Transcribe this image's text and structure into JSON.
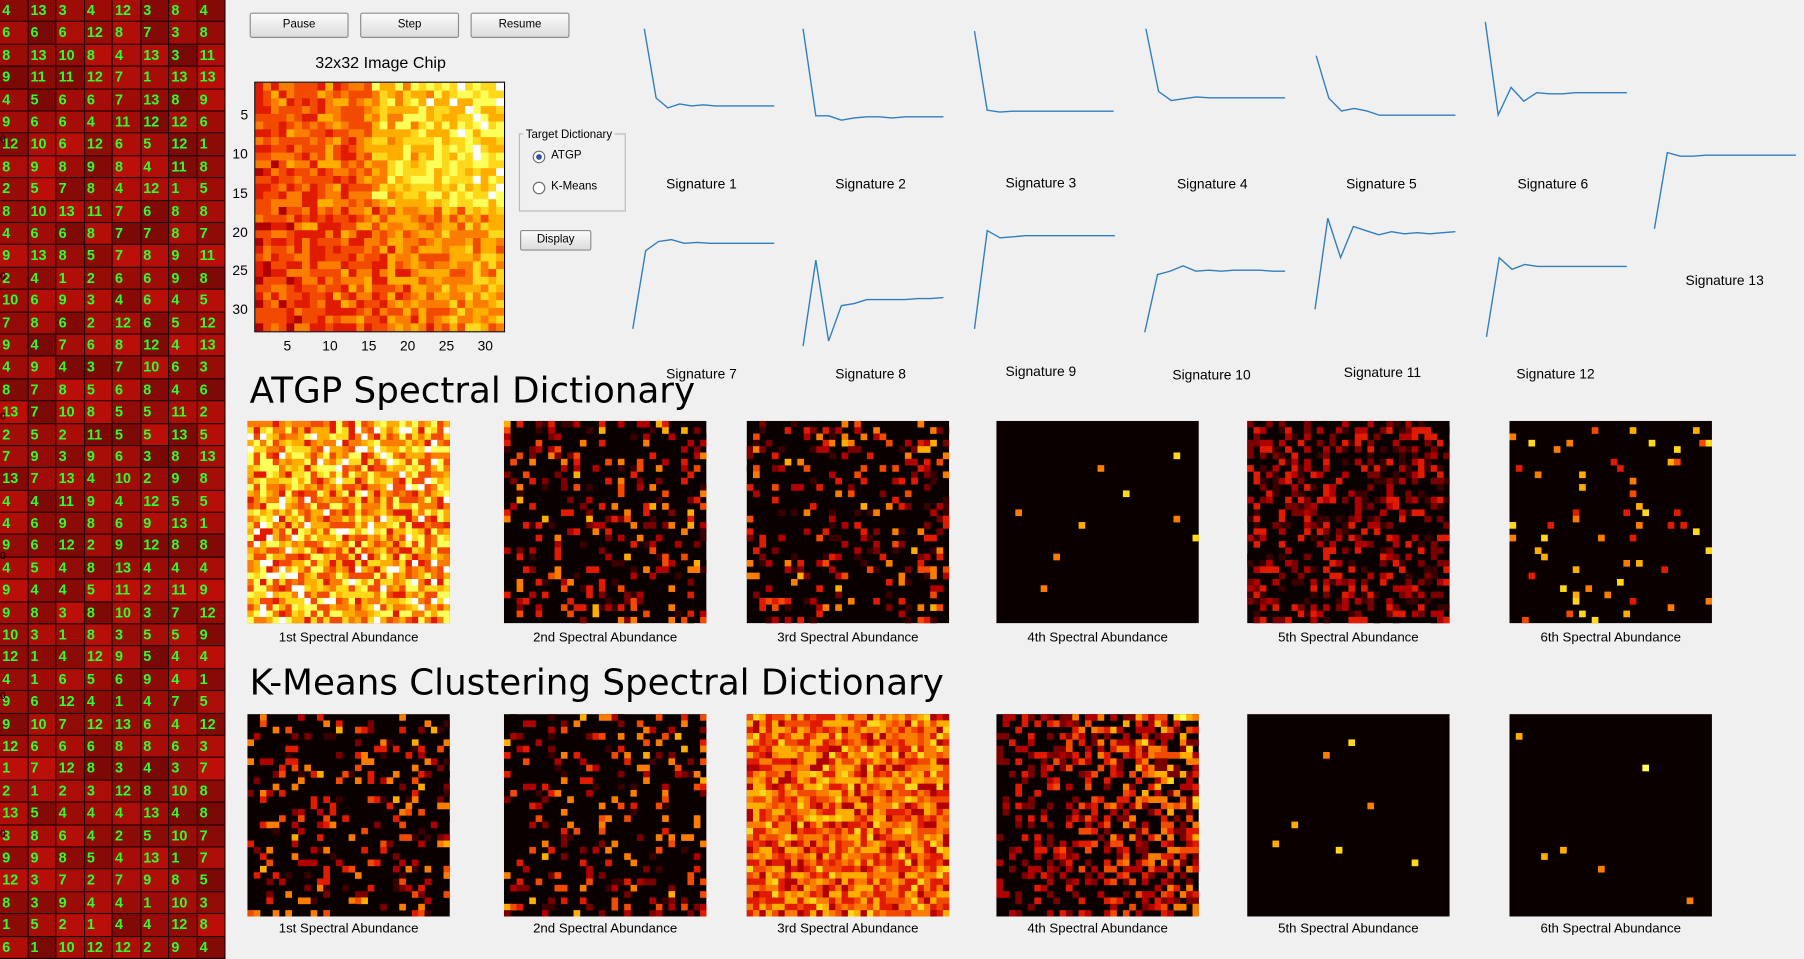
{
  "controls": {
    "pause_label": "Pause",
    "step_label": "Step",
    "resume_label": "Resume",
    "display_label": "Display",
    "target_dictionary_label": "Target Dictionary",
    "option_atgp": "ATGP",
    "option_kmeans": "K-Means",
    "selected_option": "ATGP"
  },
  "grid_panel": {
    "rows": [
      [
        "4",
        "13",
        "3",
        "4",
        "12",
        "3",
        "8",
        "4"
      ],
      [
        "6",
        "6",
        "6",
        "12",
        "8",
        "7",
        "3",
        "8"
      ],
      [
        "8",
        "13",
        "10",
        "8",
        "4",
        "13",
        "3",
        "11"
      ],
      [
        "9",
        "11",
        "11",
        "12",
        "7",
        "1",
        "13",
        "13"
      ],
      [
        "4",
        "5",
        "6",
        "6",
        "7",
        "13",
        "8",
        "9"
      ],
      [
        "9",
        "6",
        "6",
        "4",
        "11",
        "12",
        "12",
        "6"
      ],
      [
        "12",
        "10",
        "6",
        "12",
        "6",
        "5",
        "12",
        "1"
      ],
      [
        "8",
        "9",
        "8",
        "9",
        "8",
        "4",
        "11",
        "8"
      ],
      [
        "2",
        "5",
        "7",
        "8",
        "4",
        "12",
        "1",
        "5"
      ],
      [
        "8",
        "10",
        "13",
        "11",
        "7",
        "6",
        "8",
        "8"
      ],
      [
        "4",
        "6",
        "6",
        "8",
        "7",
        "7",
        "8",
        "7"
      ],
      [
        "9",
        "13",
        "8",
        "5",
        "7",
        "8",
        "9",
        "11"
      ],
      [
        "2",
        "4",
        "1",
        "2",
        "6",
        "6",
        "9",
        "8"
      ],
      [
        "10",
        "6",
        "9",
        "3",
        "4",
        "6",
        "4",
        "5"
      ],
      [
        "7",
        "8",
        "6",
        "2",
        "12",
        "6",
        "5",
        "12"
      ],
      [
        "9",
        "4",
        "7",
        "6",
        "8",
        "12",
        "4",
        "13"
      ],
      [
        "4",
        "9",
        "4",
        "3",
        "7",
        "10",
        "6",
        "3"
      ],
      [
        "8",
        "7",
        "8",
        "5",
        "6",
        "8",
        "4",
        "6"
      ],
      [
        "13",
        "7",
        "10",
        "8",
        "5",
        "5",
        "11",
        "2"
      ],
      [
        "2",
        "5",
        "2",
        "11",
        "5",
        "5",
        "13",
        "5"
      ],
      [
        "7",
        "9",
        "3",
        "9",
        "6",
        "3",
        "8",
        "13"
      ],
      [
        "13",
        "7",
        "13",
        "4",
        "10",
        "2",
        "9",
        "8"
      ],
      [
        "4",
        "4",
        "11",
        "9",
        "4",
        "12",
        "5",
        "5"
      ],
      [
        "4",
        "6",
        "9",
        "8",
        "6",
        "9",
        "13",
        "1"
      ],
      [
        "9",
        "6",
        "12",
        "2",
        "9",
        "12",
        "8",
        "8"
      ],
      [
        "4",
        "5",
        "4",
        "8",
        "13",
        "4",
        "4",
        "4"
      ],
      [
        "9",
        "4",
        "4",
        "5",
        "11",
        "2",
        "11",
        "9"
      ],
      [
        "9",
        "8",
        "3",
        "8",
        "10",
        "3",
        "7",
        "12"
      ],
      [
        "10",
        "3",
        "1",
        "8",
        "3",
        "5",
        "5",
        "9"
      ],
      [
        "12",
        "1",
        "4",
        "12",
        "9",
        "5",
        "4",
        "4"
      ],
      [
        "4",
        "1",
        "6",
        "5",
        "6",
        "9",
        "4",
        "1"
      ],
      [
        "9",
        "6",
        "12",
        "4",
        "1",
        "4",
        "7",
        "5"
      ],
      [
        "9",
        "10",
        "7",
        "12",
        "13",
        "6",
        "4",
        "12"
      ],
      [
        "12",
        "6",
        "6",
        "6",
        "8",
        "8",
        "6",
        "3"
      ],
      [
        "1",
        "7",
        "12",
        "8",
        "3",
        "4",
        "3",
        "7"
      ],
      [
        "2",
        "1",
        "2",
        "3",
        "12",
        "8",
        "10",
        "8"
      ],
      [
        "13",
        "5",
        "4",
        "4",
        "4",
        "13",
        "4",
        "8"
      ],
      [
        "3",
        "8",
        "6",
        "4",
        "2",
        "5",
        "10",
        "7"
      ],
      [
        "9",
        "9",
        "8",
        "5",
        "4",
        "13",
        "1",
        "7"
      ],
      [
        "12",
        "3",
        "7",
        "2",
        "7",
        "9",
        "8",
        "5"
      ],
      [
        "8",
        "3",
        "9",
        "4",
        "4",
        "1",
        "10",
        "3"
      ],
      [
        "1",
        "5",
        "2",
        "1",
        "4",
        "4",
        "12",
        "8"
      ],
      [
        "6",
        "1",
        "10",
        "12",
        "12",
        "2",
        "9",
        "4"
      ]
    ]
  },
  "chip": {
    "title": "32x32 Image Chip",
    "ticks_x": [
      "5",
      "10",
      "15",
      "20",
      "25",
      "30"
    ],
    "ticks_y": [
      "5",
      "10",
      "15",
      "20",
      "25",
      "30"
    ]
  },
  "signatures": [
    {
      "label": "Signature 1",
      "values": [
        1.0,
        0.3,
        0.2,
        0.24,
        0.22,
        0.23,
        0.22,
        0.22,
        0.22,
        0.22,
        0.22,
        0.22
      ]
    },
    {
      "label": "Signature 2",
      "values": [
        1.0,
        0.22,
        0.22,
        0.18,
        0.2,
        0.21,
        0.21,
        0.2,
        0.21,
        0.21,
        0.21,
        0.21
      ]
    },
    {
      "label": "Signature 3",
      "values": [
        1.0,
        0.2,
        0.18,
        0.19,
        0.19,
        0.19,
        0.19,
        0.19,
        0.19,
        0.19,
        0.19,
        0.19
      ]
    },
    {
      "label": "Signature 4",
      "values": [
        1.0,
        0.3,
        0.2,
        0.22,
        0.24,
        0.23,
        0.23,
        0.23,
        0.23,
        0.23,
        0.23,
        0.23
      ]
    },
    {
      "label": "Signature 5",
      "values": [
        0.9,
        0.4,
        0.25,
        0.28,
        0.25,
        0.2,
        0.2,
        0.2,
        0.2,
        0.2,
        0.2,
        0.2
      ]
    },
    {
      "label": "Signature 6",
      "values": [
        1.0,
        0.12,
        0.38,
        0.25,
        0.33,
        0.32,
        0.32,
        0.33,
        0.33,
        0.33,
        0.33,
        0.33
      ]
    },
    {
      "label": "Signature 7",
      "values": [
        0.0,
        0.85,
        0.95,
        0.97,
        0.93,
        0.94,
        0.93,
        0.93,
        0.93,
        0.93,
        0.93,
        0.93
      ]
    },
    {
      "label": "Signature 8",
      "values": [
        0.0,
        0.85,
        0.05,
        0.4,
        0.42,
        0.46,
        0.46,
        0.46,
        0.46,
        0.47,
        0.47,
        0.48
      ]
    },
    {
      "label": "Signature 9",
      "values": [
        0.0,
        0.95,
        0.88,
        0.89,
        0.9,
        0.9,
        0.9,
        0.9,
        0.9,
        0.9,
        0.9,
        0.9
      ]
    },
    {
      "label": "Signature 10",
      "values": [
        0.0,
        0.66,
        0.7,
        0.76,
        0.7,
        0.71,
        0.7,
        0.71,
        0.71,
        0.71,
        0.7,
        0.7
      ]
    },
    {
      "label": "Signature 11",
      "values": [
        0.1,
        0.98,
        0.6,
        0.9,
        0.86,
        0.82,
        0.85,
        0.83,
        0.84,
        0.83,
        0.84,
        0.85
      ]
    },
    {
      "label": "Signature 12",
      "values": [
        0.0,
        0.82,
        0.7,
        0.75,
        0.73,
        0.73,
        0.73,
        0.73,
        0.73,
        0.73,
        0.73,
        0.73
      ]
    },
    {
      "label": "Signature 13",
      "values": [
        0.0,
        0.85,
        0.81,
        0.81,
        0.82,
        0.82,
        0.82,
        0.82,
        0.82,
        0.82,
        0.82,
        0.82
      ]
    }
  ],
  "atgp": {
    "title": "ATGP Spectral Dictionary",
    "captions": [
      "1st Spectral Abundance",
      "2nd Spectral Abundance",
      "3rd Spectral Abundance",
      "4th Spectral Abundance",
      "5th Spectral Abundance",
      "6th Spectral Abundance"
    ]
  },
  "kmeans": {
    "title": "K-Means Clustering Spectral Dictionary",
    "captions": [
      "1st Spectral Abundance",
      "2nd Spectral Abundance",
      "3rd Spectral Abundance",
      "4th Spectral Abundance",
      "5th Spectral Abundance",
      "6th Spectral Abundance"
    ]
  },
  "colors": {
    "colormap": [
      "#0a0000",
      "#3a0000",
      "#7a0000",
      "#b00000",
      "#e01b00",
      "#f24a00",
      "#fb7d00",
      "#ffae00",
      "#ffd81c",
      "#ffff5a",
      "#ffffff"
    ],
    "signature_line": "#2f7ebf",
    "grid_text": "#2cff2c"
  }
}
